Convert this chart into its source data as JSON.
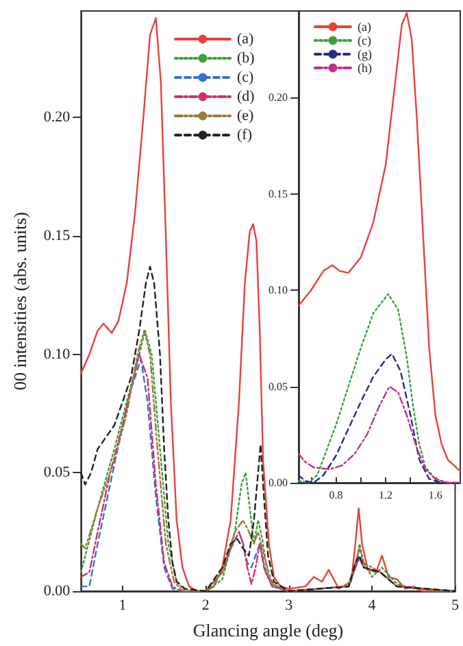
{
  "chart_data": [
    {
      "type": "line",
      "xlabel": "Glancing angle (deg)",
      "ylabel": "00 intensities (abs. units)",
      "xlim": [
        0.5,
        5
      ],
      "ylim": [
        0,
        0.245
      ],
      "xticks": [
        1,
        2,
        3,
        4,
        5
      ],
      "yticks": [
        {
          "value": 0,
          "label": "0.00"
        },
        {
          "value": 0.05,
          "label": "0.05"
        },
        {
          "value": 0.1,
          "label": "0.10"
        },
        {
          "value": 0.15,
          "label": "0.15"
        },
        {
          "value": 0.2,
          "label": "0.20"
        }
      ],
      "legend": "top",
      "grid": false,
      "series": [
        {
          "name": "(a)",
          "color": "#e8413a",
          "line_style": "solid",
          "x": [
            0.5,
            0.6,
            0.7,
            0.77,
            0.87,
            0.95,
            1.05,
            1.15,
            1.25,
            1.33,
            1.4,
            1.46,
            1.52,
            1.58,
            1.65,
            1.72,
            1.8,
            1.9,
            2.0,
            2.1,
            2.2,
            2.3,
            2.4,
            2.47,
            2.53,
            2.57,
            2.61,
            2.65,
            2.69,
            2.72,
            2.76,
            2.82,
            2.9,
            3.0,
            3.2,
            3.3,
            3.4,
            3.48,
            3.6,
            3.75,
            3.8,
            3.84,
            3.88,
            3.95,
            4.05,
            4.12,
            4.2,
            4.3,
            4.4,
            4.5,
            4.6,
            5.0
          ],
          "values": [
            0.092,
            0.1,
            0.11,
            0.113,
            0.109,
            0.114,
            0.13,
            0.16,
            0.2,
            0.235,
            0.242,
            0.215,
            0.15,
            0.08,
            0.03,
            0.01,
            0.002,
            0,
            0,
            0.002,
            0.01,
            0.03,
            0.08,
            0.13,
            0.152,
            0.155,
            0.148,
            0.11,
            0.055,
            0.04,
            0.02,
            0.006,
            0.002,
            0.001,
            0.002,
            0.006,
            0.004,
            0.009,
            0.001,
            0.004,
            0.02,
            0.035,
            0.02,
            0.009,
            0.008,
            0.015,
            0.006,
            0.005,
            0.001,
            0.002,
            0,
            0
          ]
        },
        {
          "name": "(b)",
          "color": "#3aa03a",
          "line_style": "dotted",
          "x": [
            0.5,
            0.7,
            0.9,
            1.05,
            1.2,
            1.27,
            1.35,
            1.45,
            1.55,
            1.65,
            1.75,
            2.0,
            2.2,
            2.35,
            2.43,
            2.48,
            2.53,
            2.58,
            2.63,
            2.68,
            2.75,
            2.85,
            3.0,
            3.7,
            3.8,
            3.85,
            3.9,
            4.0,
            4.12,
            4.3,
            4.5,
            5.0
          ],
          "values": [
            0.008,
            0.035,
            0.06,
            0.08,
            0.1,
            0.11,
            0.1,
            0.06,
            0.02,
            0.004,
            0,
            0,
            0.005,
            0.025,
            0.045,
            0.05,
            0.035,
            0.02,
            0.03,
            0.022,
            0.006,
            0.002,
            0,
            0.002,
            0.01,
            0.02,
            0.012,
            0.006,
            0.01,
            0.003,
            0.001,
            0
          ]
        },
        {
          "name": "(c)",
          "color": "#3a6fd0",
          "line_style": "dashed",
          "x": [
            0.5,
            0.6,
            0.7,
            0.85,
            1.0,
            1.1,
            1.22,
            1.3,
            1.4,
            1.5,
            1.6,
            1.7,
            2.0,
            2.2,
            2.3,
            2.4,
            2.45,
            2.5,
            2.55,
            2.6,
            2.65,
            2.7,
            2.8,
            3.0,
            3.72,
            3.8,
            3.85,
            3.9,
            4.1,
            4.3,
            5.0
          ],
          "values": [
            0.002,
            0.002,
            0.02,
            0.045,
            0.07,
            0.085,
            0.098,
            0.08,
            0.04,
            0.01,
            0.001,
            0,
            0,
            0.008,
            0.018,
            0.025,
            0.02,
            0.012,
            0.01,
            0.015,
            0.02,
            0.01,
            0.002,
            0,
            0.002,
            0.01,
            0.015,
            0.01,
            0.008,
            0.002,
            0
          ]
        },
        {
          "name": "(d)",
          "color": "#d0306a",
          "line_style": "dashdot",
          "x": [
            0.5,
            0.6,
            0.7,
            0.85,
            1.0,
            1.1,
            1.2,
            1.3,
            1.4,
            1.5,
            1.6,
            1.7,
            2.0,
            2.2,
            2.3,
            2.4,
            2.45,
            2.5,
            2.55,
            2.6,
            2.65,
            2.72,
            2.8,
            3.0,
            3.72,
            3.8,
            3.85,
            3.9,
            4.1,
            4.3,
            5.0
          ],
          "values": [
            0.006,
            0.008,
            0.025,
            0.05,
            0.07,
            0.085,
            0.1,
            0.09,
            0.045,
            0.012,
            0.002,
            0,
            0,
            0.008,
            0.018,
            0.025,
            0.02,
            0.01,
            0.003,
            0.01,
            0.02,
            0.008,
            0.002,
            0,
            0.002,
            0.01,
            0.014,
            0.01,
            0.008,
            0.002,
            0
          ]
        },
        {
          "name": "(e)",
          "color": "#9a7a3a",
          "line_style": "dashdotdot",
          "x": [
            0.5,
            0.55,
            0.7,
            0.9,
            1.05,
            1.18,
            1.26,
            1.33,
            1.42,
            1.52,
            1.62,
            1.72,
            2.0,
            2.2,
            2.35,
            2.45,
            2.52,
            2.58,
            2.63,
            2.7,
            2.8,
            3.0,
            3.72,
            3.8,
            3.85,
            3.9,
            4.1,
            4.3,
            5.0
          ],
          "values": [
            0.02,
            0.018,
            0.035,
            0.055,
            0.075,
            0.1,
            0.11,
            0.1,
            0.06,
            0.02,
            0.004,
            0,
            0,
            0.008,
            0.025,
            0.03,
            0.025,
            0.02,
            0.025,
            0.015,
            0.003,
            0,
            0.002,
            0.012,
            0.018,
            0.012,
            0.008,
            0.002,
            0
          ]
        },
        {
          "name": "(f)",
          "color": "#222222",
          "line_style": "dashed",
          "x": [
            0.5,
            0.55,
            0.62,
            0.7,
            0.8,
            0.9,
            1.0,
            1.1,
            1.2,
            1.28,
            1.33,
            1.38,
            1.45,
            1.5,
            1.55,
            1.6,
            1.65,
            1.75,
            2.0,
            2.2,
            2.3,
            2.38,
            2.45,
            2.52,
            2.58,
            2.63,
            2.66,
            2.7,
            2.75,
            2.82,
            3.0,
            3.72,
            3.8,
            3.85,
            3.9,
            4.1,
            4.3,
            5.0
          ],
          "values": [
            0.05,
            0.045,
            0.05,
            0.06,
            0.065,
            0.07,
            0.08,
            0.09,
            0.11,
            0.13,
            0.137,
            0.13,
            0.1,
            0.06,
            0.03,
            0.012,
            0.004,
            0.001,
            0,
            0.01,
            0.02,
            0.022,
            0.018,
            0.015,
            0.03,
            0.05,
            0.062,
            0.04,
            0.015,
            0.004,
            0,
            0.002,
            0.012,
            0.015,
            0.01,
            0.008,
            0.002,
            0
          ]
        }
      ]
    },
    {
      "type": "line",
      "xlim": [
        0.5,
        1.8
      ],
      "ylim": [
        0,
        0.245
      ],
      "xticks": [
        {
          "value": 0.6,
          "label": null
        },
        {
          "value": 0.8,
          "label": "0.8"
        },
        {
          "value": 1.0,
          "label": null
        },
        {
          "value": 1.2,
          "label": "1.2"
        },
        {
          "value": 1.4,
          "label": null
        },
        {
          "value": 1.6,
          "label": "1.6"
        }
      ],
      "yticks": [
        {
          "value": 0,
          "label": "0.00"
        },
        {
          "value": 0.05,
          "label": "0.05"
        },
        {
          "value": 0.1,
          "label": "0.10"
        },
        {
          "value": 0.15,
          "label": "0.15"
        },
        {
          "value": 0.2,
          "label": "0.20"
        }
      ],
      "legend": "top left",
      "grid": false,
      "series": [
        {
          "name": "(a)",
          "color": "#e8413a",
          "line_style": "solid",
          "x": [
            0.5,
            0.6,
            0.7,
            0.77,
            0.83,
            0.9,
            1.0,
            1.1,
            1.2,
            1.28,
            1.33,
            1.37,
            1.41,
            1.45,
            1.5,
            1.55,
            1.6,
            1.65,
            1.7,
            1.8
          ],
          "values": [
            0.092,
            0.1,
            0.11,
            0.113,
            0.11,
            0.109,
            0.117,
            0.135,
            0.165,
            0.21,
            0.238,
            0.244,
            0.23,
            0.19,
            0.13,
            0.07,
            0.035,
            0.02,
            0.012,
            0.006
          ]
        },
        {
          "name": "(c)",
          "color": "#3aa03a",
          "line_style": "dotted",
          "x": [
            0.5,
            0.58,
            0.65,
            0.8,
            0.9,
            1.0,
            1.1,
            1.22,
            1.3,
            1.37,
            1.42,
            1.47,
            1.52,
            1.6,
            1.7,
            1.8
          ],
          "values": [
            0.001,
            0,
            0.004,
            0.03,
            0.05,
            0.07,
            0.088,
            0.098,
            0.09,
            0.065,
            0.04,
            0.02,
            0.008,
            0.002,
            0,
            0
          ]
        },
        {
          "name": "(g)",
          "color": "#2a2a8a",
          "line_style": "dashed",
          "x": [
            0.5,
            0.55,
            0.62,
            0.7,
            0.8,
            0.9,
            1.0,
            1.1,
            1.2,
            1.25,
            1.32,
            1.4,
            1.47,
            1.55,
            1.65,
            1.8
          ],
          "values": [
            0.004,
            0.001,
            0,
            0.004,
            0.014,
            0.028,
            0.042,
            0.055,
            0.064,
            0.067,
            0.058,
            0.035,
            0.012,
            0.002,
            0,
            0
          ]
        },
        {
          "name": "(h)",
          "color": "#c0308a",
          "line_style": "dashdot",
          "x": [
            0.5,
            0.55,
            0.62,
            0.75,
            0.85,
            0.95,
            1.05,
            1.15,
            1.23,
            1.3,
            1.37,
            1.45,
            1.52,
            1.6,
            1.7,
            1.8
          ],
          "values": [
            0.015,
            0.011,
            0.008,
            0.007,
            0.009,
            0.015,
            0.025,
            0.04,
            0.05,
            0.047,
            0.035,
            0.018,
            0.007,
            0.002,
            0,
            0
          ]
        }
      ]
    }
  ]
}
